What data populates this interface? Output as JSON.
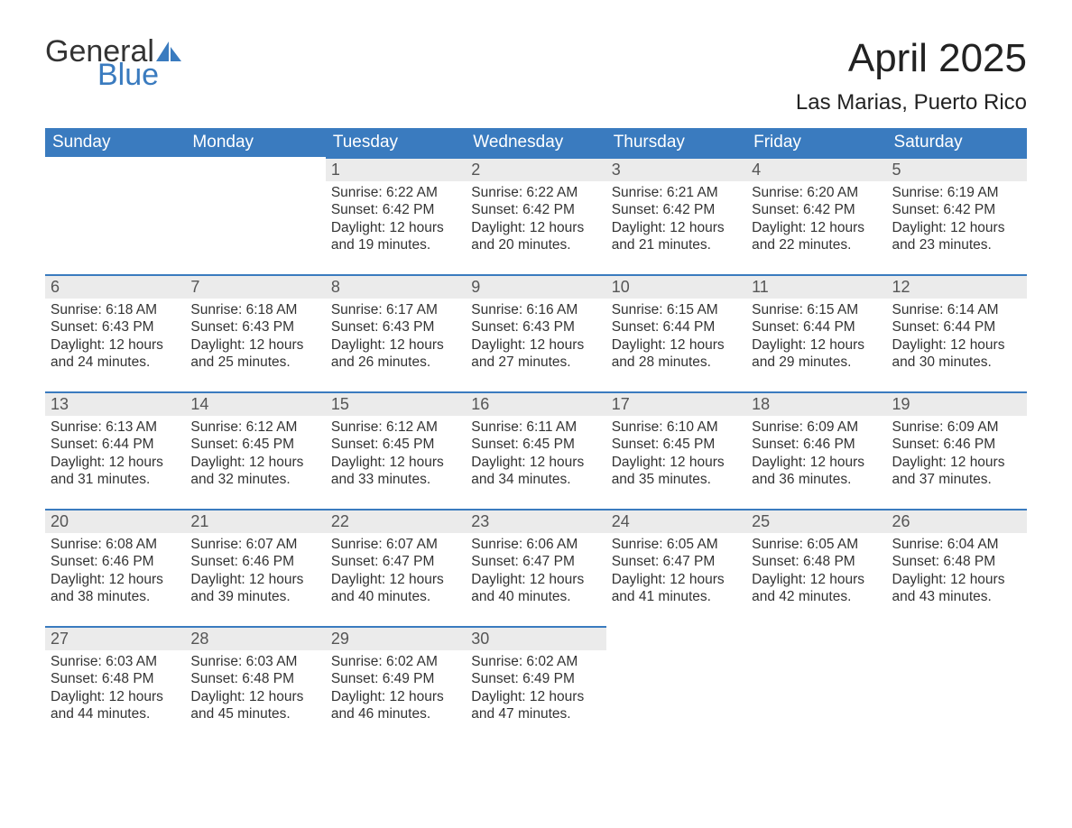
{
  "logo": {
    "text1": "General",
    "text2": "Blue",
    "sail_color": "#3a7bbf"
  },
  "title": {
    "month": "April 2025",
    "location": "Las Marias, Puerto Rico"
  },
  "colors": {
    "header_bg": "#3a7bbf",
    "header_text": "#ffffff",
    "daynum_bg": "#ebebeb",
    "daynum_border": "#3a7bbf",
    "body_text": "#333333",
    "page_bg": "#ffffff"
  },
  "columns": [
    "Sunday",
    "Monday",
    "Tuesday",
    "Wednesday",
    "Thursday",
    "Friday",
    "Saturday"
  ],
  "weeks": [
    [
      {
        "empty": true
      },
      {
        "empty": true
      },
      {
        "day": "1",
        "sunrise": "6:22 AM",
        "sunset": "6:42 PM",
        "daylight": "12 hours and 19 minutes."
      },
      {
        "day": "2",
        "sunrise": "6:22 AM",
        "sunset": "6:42 PM",
        "daylight": "12 hours and 20 minutes."
      },
      {
        "day": "3",
        "sunrise": "6:21 AM",
        "sunset": "6:42 PM",
        "daylight": "12 hours and 21 minutes."
      },
      {
        "day": "4",
        "sunrise": "6:20 AM",
        "sunset": "6:42 PM",
        "daylight": "12 hours and 22 minutes."
      },
      {
        "day": "5",
        "sunrise": "6:19 AM",
        "sunset": "6:42 PM",
        "daylight": "12 hours and 23 minutes."
      }
    ],
    [
      {
        "day": "6",
        "sunrise": "6:18 AM",
        "sunset": "6:43 PM",
        "daylight": "12 hours and 24 minutes."
      },
      {
        "day": "7",
        "sunrise": "6:18 AM",
        "sunset": "6:43 PM",
        "daylight": "12 hours and 25 minutes."
      },
      {
        "day": "8",
        "sunrise": "6:17 AM",
        "sunset": "6:43 PM",
        "daylight": "12 hours and 26 minutes."
      },
      {
        "day": "9",
        "sunrise": "6:16 AM",
        "sunset": "6:43 PM",
        "daylight": "12 hours and 27 minutes."
      },
      {
        "day": "10",
        "sunrise": "6:15 AM",
        "sunset": "6:44 PM",
        "daylight": "12 hours and 28 minutes."
      },
      {
        "day": "11",
        "sunrise": "6:15 AM",
        "sunset": "6:44 PM",
        "daylight": "12 hours and 29 minutes."
      },
      {
        "day": "12",
        "sunrise": "6:14 AM",
        "sunset": "6:44 PM",
        "daylight": "12 hours and 30 minutes."
      }
    ],
    [
      {
        "day": "13",
        "sunrise": "6:13 AM",
        "sunset": "6:44 PM",
        "daylight": "12 hours and 31 minutes."
      },
      {
        "day": "14",
        "sunrise": "6:12 AM",
        "sunset": "6:45 PM",
        "daylight": "12 hours and 32 minutes."
      },
      {
        "day": "15",
        "sunrise": "6:12 AM",
        "sunset": "6:45 PM",
        "daylight": "12 hours and 33 minutes."
      },
      {
        "day": "16",
        "sunrise": "6:11 AM",
        "sunset": "6:45 PM",
        "daylight": "12 hours and 34 minutes."
      },
      {
        "day": "17",
        "sunrise": "6:10 AM",
        "sunset": "6:45 PM",
        "daylight": "12 hours and 35 minutes."
      },
      {
        "day": "18",
        "sunrise": "6:09 AM",
        "sunset": "6:46 PM",
        "daylight": "12 hours and 36 minutes."
      },
      {
        "day": "19",
        "sunrise": "6:09 AM",
        "sunset": "6:46 PM",
        "daylight": "12 hours and 37 minutes."
      }
    ],
    [
      {
        "day": "20",
        "sunrise": "6:08 AM",
        "sunset": "6:46 PM",
        "daylight": "12 hours and 38 minutes."
      },
      {
        "day": "21",
        "sunrise": "6:07 AM",
        "sunset": "6:46 PM",
        "daylight": "12 hours and 39 minutes."
      },
      {
        "day": "22",
        "sunrise": "6:07 AM",
        "sunset": "6:47 PM",
        "daylight": "12 hours and 40 minutes."
      },
      {
        "day": "23",
        "sunrise": "6:06 AM",
        "sunset": "6:47 PM",
        "daylight": "12 hours and 40 minutes."
      },
      {
        "day": "24",
        "sunrise": "6:05 AM",
        "sunset": "6:47 PM",
        "daylight": "12 hours and 41 minutes."
      },
      {
        "day": "25",
        "sunrise": "6:05 AM",
        "sunset": "6:48 PM",
        "daylight": "12 hours and 42 minutes."
      },
      {
        "day": "26",
        "sunrise": "6:04 AM",
        "sunset": "6:48 PM",
        "daylight": "12 hours and 43 minutes."
      }
    ],
    [
      {
        "day": "27",
        "sunrise": "6:03 AM",
        "sunset": "6:48 PM",
        "daylight": "12 hours and 44 minutes."
      },
      {
        "day": "28",
        "sunrise": "6:03 AM",
        "sunset": "6:48 PM",
        "daylight": "12 hours and 45 minutes."
      },
      {
        "day": "29",
        "sunrise": "6:02 AM",
        "sunset": "6:49 PM",
        "daylight": "12 hours and 46 minutes."
      },
      {
        "day": "30",
        "sunrise": "6:02 AM",
        "sunset": "6:49 PM",
        "daylight": "12 hours and 47 minutes."
      },
      {
        "empty": true
      },
      {
        "empty": true
      },
      {
        "empty": true
      }
    ]
  ],
  "labels": {
    "sunrise": "Sunrise:",
    "sunset": "Sunset:",
    "daylight": "Daylight:"
  }
}
